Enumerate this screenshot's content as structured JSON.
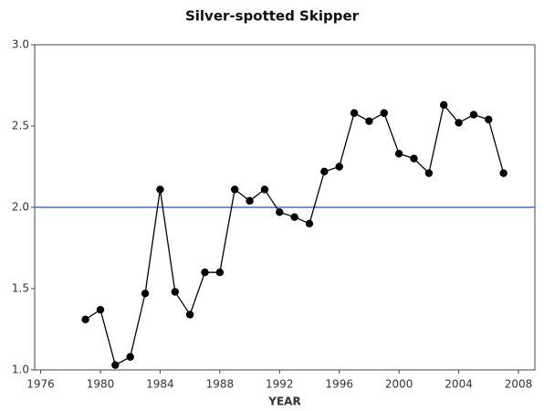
{
  "chart_data": {
    "type": "line",
    "title": "Silver-spotted Skipper",
    "x_label": "YEAR",
    "x": [
      1979,
      1980,
      1981,
      1982,
      1983,
      1984,
      1985,
      1986,
      1987,
      1988,
      1989,
      1990,
      1991,
      1992,
      1993,
      1994,
      1995,
      1996,
      1997,
      1998,
      1999,
      2000,
      2001,
      2002,
      2003,
      2004,
      2005,
      2006,
      2007
    ],
    "series": [
      {
        "name": "Silver-spotted Skipper",
        "color": "#000000",
        "values": [
          1.31,
          1.37,
          1.03,
          1.08,
          1.47,
          2.11,
          1.48,
          1.34,
          1.6,
          1.6,
          2.11,
          2.04,
          2.11,
          1.97,
          1.94,
          1.9,
          2.22,
          2.25,
          2.58,
          2.53,
          2.58,
          2.33,
          2.3,
          2.21,
          2.63,
          2.52,
          2.57,
          2.54,
          2.21
        ]
      }
    ],
    "xlim": [
      1975.6,
      2009.1
    ],
    "xticks": [
      1976,
      1980,
      1984,
      1988,
      1992,
      1996,
      2000,
      2004,
      2008
    ],
    "ylim": [
      1,
      3
    ],
    "yticks": [
      {
        "value": 1,
        "label": "1.0"
      },
      {
        "value": 1.5,
        "label": "1.5"
      },
      {
        "value": 2,
        "label": "2.0"
      },
      {
        "value": 2.5,
        "label": "2.5"
      },
      {
        "value": 3,
        "label": "3.0"
      }
    ],
    "reference_line": {
      "value": 2,
      "color": "#4472c4"
    },
    "grid": false
  }
}
